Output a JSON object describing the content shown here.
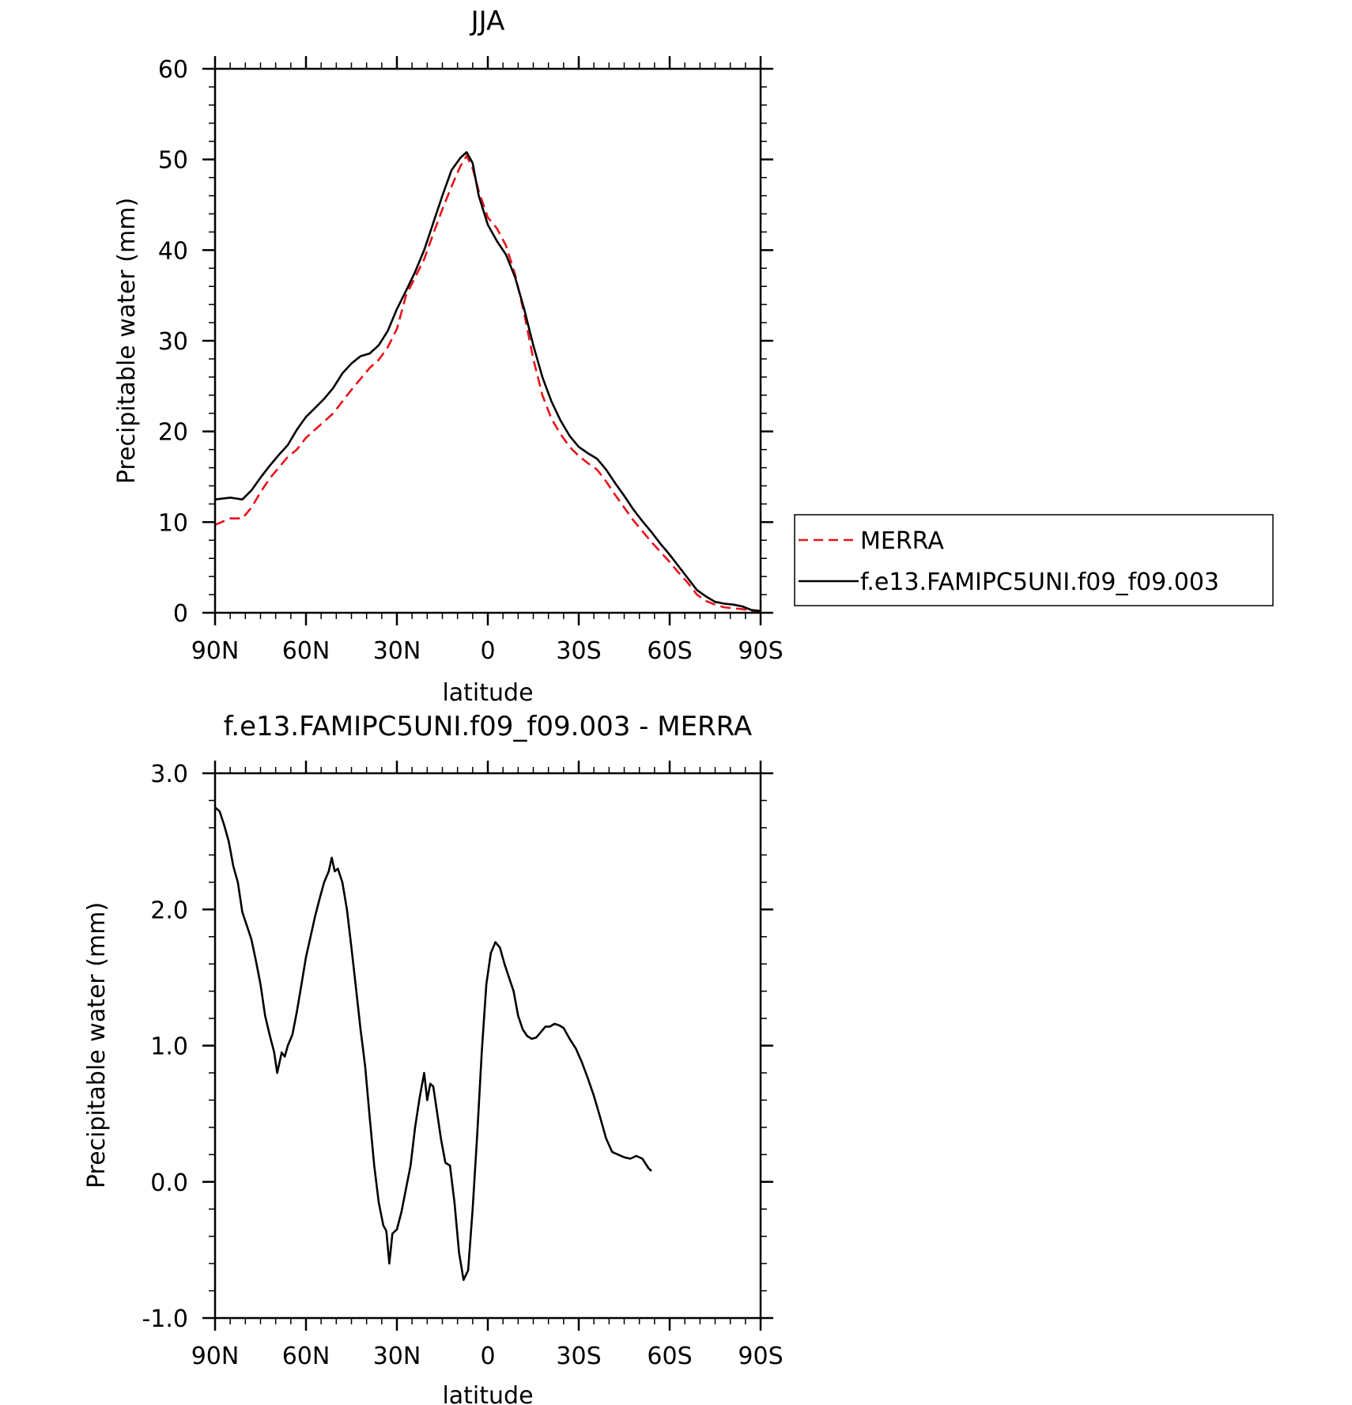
{
  "chart_data": [
    {
      "type": "line",
      "title": "JJA",
      "xlabel": "latitude",
      "ylabel": "Precipitable water (mm)",
      "xlim": [
        90,
        -90
      ],
      "ylim": [
        0,
        60
      ],
      "x_ticks": [
        {
          "value": 90,
          "label": "90N"
        },
        {
          "value": 60,
          "label": "60N"
        },
        {
          "value": 30,
          "label": "30N"
        },
        {
          "value": 0,
          "label": "0"
        },
        {
          "value": -30,
          "label": "30S"
        },
        {
          "value": -60,
          "label": "60S"
        },
        {
          "value": -90,
          "label": "90S"
        }
      ],
      "y_ticks": [
        {
          "value": 0,
          "label": "0"
        },
        {
          "value": 10,
          "label": "10"
        },
        {
          "value": 20,
          "label": "20"
        },
        {
          "value": 30,
          "label": "30"
        },
        {
          "value": 40,
          "label": "40"
        },
        {
          "value": 50,
          "label": "50"
        },
        {
          "value": 60,
          "label": "60"
        }
      ],
      "legend": {
        "position": "right"
      },
      "series": [
        {
          "name": "MERRA",
          "color": "#e8141c",
          "dash": true,
          "points": [
            [
              90,
              9.7
            ],
            [
              85,
              10.4
            ],
            [
              81,
              10.4
            ],
            [
              78,
              11.6
            ],
            [
              75,
              13.3
            ],
            [
              72,
              14.8
            ],
            [
              69,
              16.0
            ],
            [
              66,
              17.2
            ],
            [
              63,
              18.0
            ],
            [
              60,
              19.3
            ],
            [
              57,
              20.2
            ],
            [
              54,
              21.1
            ],
            [
              51,
              22.0
            ],
            [
              48,
              23.3
            ],
            [
              45,
              24.6
            ],
            [
              42,
              25.8
            ],
            [
              39,
              27.0
            ],
            [
              36,
              27.9
            ],
            [
              33,
              29.3
            ],
            [
              30,
              31.3
            ],
            [
              27,
              35.0
            ],
            [
              24,
              37.0
            ],
            [
              21,
              39.0
            ],
            [
              18,
              41.8
            ],
            [
              15,
              44.5
            ],
            [
              12,
              47.0
            ],
            [
              9,
              49.3
            ],
            [
              7,
              50.4
            ],
            [
              5,
              49.0
            ],
            [
              3,
              46.5
            ],
            [
              0,
              43.6
            ],
            [
              -3,
              42.4
            ],
            [
              -6,
              40.5
            ],
            [
              -9,
              37.3
            ],
            [
              -12,
              33.0
            ],
            [
              -15,
              28.0
            ],
            [
              -18,
              24.0
            ],
            [
              -21,
              21.4
            ],
            [
              -24,
              19.7
            ],
            [
              -27,
              18.3
            ],
            [
              -30,
              17.3
            ],
            [
              -33,
              16.5
            ],
            [
              -36,
              15.8
            ],
            [
              -39,
              14.5
            ],
            [
              -42,
              13.0
            ],
            [
              -45,
              11.6
            ],
            [
              -48,
              10.2
            ],
            [
              -51,
              9.0
            ],
            [
              -54,
              7.8
            ],
            [
              -57,
              6.7
            ],
            [
              -60,
              5.6
            ],
            [
              -63,
              4.4
            ],
            [
              -66,
              3.3
            ],
            [
              -69,
              2.0
            ],
            [
              -72,
              1.3
            ],
            [
              -75,
              0.9
            ],
            [
              -78,
              0.6
            ],
            [
              -81,
              0.5
            ],
            [
              -84,
              0.4
            ],
            [
              -87,
              0.2
            ],
            [
              -90,
              0.1
            ]
          ]
        },
        {
          "name": "f.e13.FAMIPC5UNI.f09_f09.003",
          "color": "#000000",
          "dash": false,
          "points": [
            [
              90,
              12.5
            ],
            [
              85,
              12.7
            ],
            [
              81,
              12.5
            ],
            [
              78,
              13.5
            ],
            [
              75,
              14.9
            ],
            [
              72,
              16.2
            ],
            [
              69,
              17.4
            ],
            [
              66,
              18.5
            ],
            [
              63,
              20.2
            ],
            [
              60,
              21.6
            ],
            [
              57,
              22.6
            ],
            [
              54,
              23.6
            ],
            [
              51,
              24.8
            ],
            [
              48,
              26.4
            ],
            [
              45,
              27.5
            ],
            [
              42,
              28.3
            ],
            [
              39,
              28.6
            ],
            [
              36,
              29.5
            ],
            [
              33,
              31.1
            ],
            [
              30,
              33.5
            ],
            [
              27,
              35.5
            ],
            [
              24,
              37.6
            ],
            [
              21,
              40.0
            ],
            [
              18,
              43.0
            ],
            [
              15,
              46.0
            ],
            [
              12,
              48.8
            ],
            [
              9,
              50.2
            ],
            [
              7,
              50.8
            ],
            [
              5,
              49.6
            ],
            [
              3,
              46.0
            ],
            [
              0,
              42.8
            ],
            [
              -3,
              41.0
            ],
            [
              -6,
              39.5
            ],
            [
              -9,
              37.0
            ],
            [
              -12,
              33.5
            ],
            [
              -15,
              29.5
            ],
            [
              -18,
              26.0
            ],
            [
              -21,
              23.3
            ],
            [
              -24,
              21.2
            ],
            [
              -27,
              19.5
            ],
            [
              -30,
              18.3
            ],
            [
              -33,
              17.6
            ],
            [
              -36,
              17.0
            ],
            [
              -39,
              15.8
            ],
            [
              -42,
              14.3
            ],
            [
              -45,
              12.9
            ],
            [
              -48,
              11.4
            ],
            [
              -51,
              10.1
            ],
            [
              -54,
              8.9
            ],
            [
              -57,
              7.6
            ],
            [
              -60,
              6.4
            ],
            [
              -63,
              5.1
            ],
            [
              -66,
              3.8
            ],
            [
              -69,
              2.5
            ],
            [
              -72,
              1.8
            ],
            [
              -75,
              1.2
            ],
            [
              -78,
              1.0
            ],
            [
              -81,
              0.9
            ],
            [
              -84,
              0.7
            ],
            [
              -87,
              0.3
            ],
            [
              -90,
              0.2
            ]
          ]
        }
      ]
    },
    {
      "type": "line",
      "title": "f.e13.FAMIPC5UNI.f09_f09.003 - MERRA",
      "xlabel": "latitude",
      "ylabel": "Precipitable water (mm)",
      "xlim": [
        90,
        -90
      ],
      "ylim": [
        -1.0,
        3.0
      ],
      "x_ticks": [
        {
          "value": 90,
          "label": "90N"
        },
        {
          "value": 60,
          "label": "60N"
        },
        {
          "value": 30,
          "label": "30N"
        },
        {
          "value": 0,
          "label": "0"
        },
        {
          "value": -30,
          "label": "30S"
        },
        {
          "value": -60,
          "label": "60S"
        },
        {
          "value": -90,
          "label": "90S"
        }
      ],
      "y_ticks": [
        {
          "value": -1.0,
          "label": "-1.0"
        },
        {
          "value": 0.0,
          "label": "0.0"
        },
        {
          "value": 1.0,
          "label": "1.0"
        },
        {
          "value": 2.0,
          "label": "2.0"
        },
        {
          "value": 3.0,
          "label": "3.0"
        }
      ],
      "series": [
        {
          "color": "#000000",
          "dash": false,
          "points": [
            [
              90,
              2.75
            ],
            [
              88.5,
              2.72
            ],
            [
              87,
              2.62
            ],
            [
              85.5,
              2.5
            ],
            [
              84,
              2.32
            ],
            [
              82.5,
              2.2
            ],
            [
              81,
              1.98
            ],
            [
              79.5,
              1.88
            ],
            [
              78,
              1.78
            ],
            [
              76.5,
              1.62
            ],
            [
              75,
              1.45
            ],
            [
              73.5,
              1.22
            ],
            [
              72,
              1.08
            ],
            [
              70.5,
              0.95
            ],
            [
              69.5,
              0.8
            ],
            [
              68,
              0.95
            ],
            [
              67,
              0.92
            ],
            [
              66,
              1.0
            ],
            [
              64.5,
              1.08
            ],
            [
              63,
              1.25
            ],
            [
              61.5,
              1.45
            ],
            [
              60,
              1.65
            ],
            [
              58.5,
              1.8
            ],
            [
              57,
              1.95
            ],
            [
              55.5,
              2.08
            ],
            [
              54,
              2.2
            ],
            [
              52.5,
              2.28
            ],
            [
              51.5,
              2.38
            ],
            [
              50.5,
              2.28
            ],
            [
              49.5,
              2.3
            ],
            [
              48,
              2.2
            ],
            [
              46.5,
              2.0
            ],
            [
              45,
              1.72
            ],
            [
              43.5,
              1.42
            ],
            [
              42,
              1.12
            ],
            [
              40.5,
              0.85
            ],
            [
              39,
              0.48
            ],
            [
              37.5,
              0.12
            ],
            [
              36,
              -0.15
            ],
            [
              34.5,
              -0.32
            ],
            [
              33.5,
              -0.36
            ],
            [
              32.5,
              -0.6
            ],
            [
              31.5,
              -0.38
            ],
            [
              30,
              -0.35
            ],
            [
              28.5,
              -0.22
            ],
            [
              27,
              -0.05
            ],
            [
              25.5,
              0.12
            ],
            [
              24,
              0.4
            ],
            [
              22.5,
              0.62
            ],
            [
              21,
              0.8
            ],
            [
              20,
              0.6
            ],
            [
              19,
              0.72
            ],
            [
              18,
              0.7
            ],
            [
              17,
              0.55
            ],
            [
              15.5,
              0.32
            ],
            [
              14,
              0.14
            ],
            [
              12.5,
              0.12
            ],
            [
              11,
              -0.15
            ],
            [
              9.5,
              -0.52
            ],
            [
              8,
              -0.72
            ],
            [
              6.5,
              -0.65
            ],
            [
              5,
              -0.2
            ],
            [
              3.5,
              0.35
            ],
            [
              2,
              0.95
            ],
            [
              0.5,
              1.45
            ],
            [
              -1,
              1.68
            ],
            [
              -2.5,
              1.76
            ],
            [
              -4,
              1.72
            ],
            [
              -5.5,
              1.6
            ],
            [
              -7,
              1.5
            ],
            [
              -8.5,
              1.4
            ],
            [
              -10,
              1.22
            ],
            [
              -11.5,
              1.12
            ],
            [
              -13,
              1.07
            ],
            [
              -14.5,
              1.05
            ],
            [
              -16,
              1.06
            ],
            [
              -17.5,
              1.1
            ],
            [
              -19,
              1.14
            ],
            [
              -20.5,
              1.14
            ],
            [
              -22,
              1.16
            ],
            [
              -23.5,
              1.15
            ],
            [
              -25,
              1.13
            ],
            [
              -27,
              1.05
            ],
            [
              -29,
              0.98
            ],
            [
              -31,
              0.88
            ],
            [
              -33,
              0.76
            ],
            [
              -35,
              0.63
            ],
            [
              -37,
              0.48
            ],
            [
              -39,
              0.32
            ],
            [
              -41,
              0.22
            ],
            [
              -43,
              0.2
            ],
            [
              -45,
              0.18
            ],
            [
              -47,
              0.17
            ],
            [
              -49,
              0.19
            ],
            [
              -51,
              0.17
            ],
            [
              -53,
              0.1
            ],
            [
              -54,
              0.08
            ]
          ]
        }
      ]
    }
  ]
}
